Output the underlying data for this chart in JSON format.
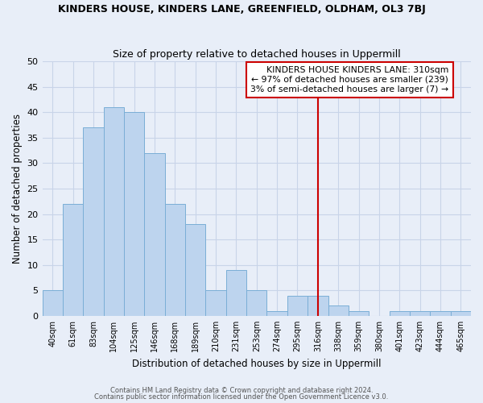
{
  "title": "KINDERS HOUSE, KINDERS LANE, GREENFIELD, OLDHAM, OL3 7BJ",
  "subtitle": "Size of property relative to detached houses in Uppermill",
  "xlabel": "Distribution of detached houses by size in Uppermill",
  "ylabel": "Number of detached properties",
  "bin_labels": [
    "40sqm",
    "61sqm",
    "83sqm",
    "104sqm",
    "125sqm",
    "146sqm",
    "168sqm",
    "189sqm",
    "210sqm",
    "231sqm",
    "253sqm",
    "274sqm",
    "295sqm",
    "316sqm",
    "338sqm",
    "359sqm",
    "380sqm",
    "401sqm",
    "423sqm",
    "444sqm",
    "465sqm"
  ],
  "bar_heights": [
    5,
    22,
    37,
    41,
    40,
    32,
    22,
    18,
    5,
    9,
    5,
    1,
    4,
    4,
    2,
    1,
    0,
    1,
    1,
    1,
    1
  ],
  "bar_color": "#bdd4ee",
  "bar_edgecolor": "#7aaed6",
  "vline_x": 13.0,
  "vline_color": "#cc0000",
  "annotation_text": "KINDERS HOUSE KINDERS LANE: 310sqm\n← 97% of detached houses are smaller (239)\n3% of semi-detached houses are larger (7) →",
  "annotation_box_color": "#ffffff",
  "annotation_box_edgecolor": "#cc0000",
  "ylim": [
    0,
    50
  ],
  "yticks": [
    0,
    5,
    10,
    15,
    20,
    25,
    30,
    35,
    40,
    45,
    50
  ],
  "grid_color": "#c8d4e8",
  "background_color": "#e8eef8",
  "footer_line1": "Contains HM Land Registry data © Crown copyright and database right 2024.",
  "footer_line2": "Contains public sector information licensed under the Open Government Licence v3.0."
}
